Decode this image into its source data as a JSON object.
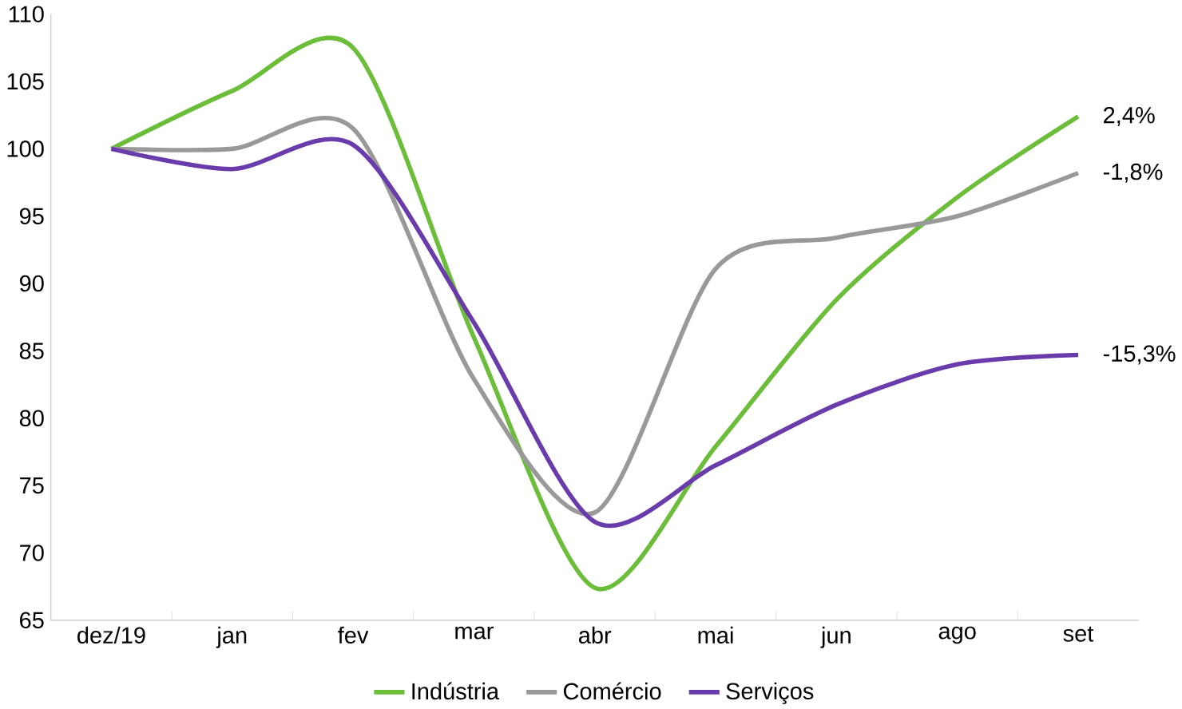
{
  "chart_data": {
    "type": "line",
    "categories": [
      "dez/19",
      "jan",
      "fev",
      "mar",
      "abr",
      "mai",
      "jun",
      "ago",
      "set"
    ],
    "series": [
      {
        "name": "Indústria",
        "color": "#6bbd3a",
        "values": [
          100,
          104.3,
          107.5,
          86,
          67.4,
          77.9,
          88.8,
          96.4,
          102.4
        ]
      },
      {
        "name": "Comércio",
        "color": "#999999",
        "values": [
          100,
          100,
          101.5,
          82.9,
          73,
          91.1,
          93.4,
          95,
          98.2
        ]
      },
      {
        "name": "Serviços",
        "color": "#6a3bab",
        "values": [
          100,
          98.5,
          100.3,
          87.1,
          72.3,
          76.5,
          81,
          84,
          84.7
        ]
      }
    ],
    "ylim": [
      65,
      110
    ],
    "yticks": [
      65,
      70,
      75,
      80,
      85,
      90,
      95,
      100,
      105,
      110
    ],
    "annotations": [
      {
        "text": "2,4%",
        "x": "set",
        "y": 102.4
      },
      {
        "text": "-1,8%",
        "x": "set",
        "y": 98.2
      },
      {
        "text": "-15,3%",
        "x": "set",
        "y": 84.7
      }
    ],
    "grid": false,
    "legend": "bottom",
    "marker": "none",
    "line_style": "solid"
  }
}
